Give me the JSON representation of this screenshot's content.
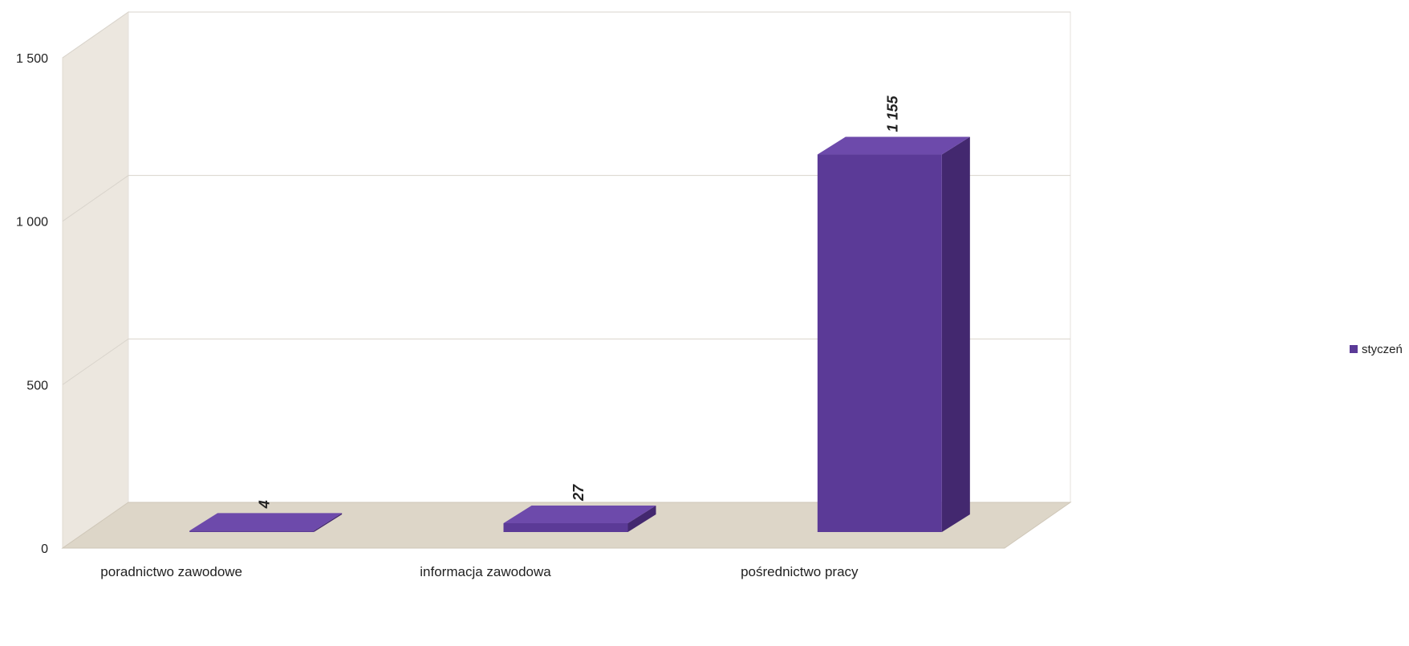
{
  "chart_data": {
    "type": "bar",
    "title": "",
    "xlabel": "",
    "ylabel": "",
    "categories": [
      "poradnictwo zawodowe",
      "informacja zawodowa",
      "pośrednictwo  pracy"
    ],
    "series": [
      {
        "name": "styczeń",
        "values": [
          4,
          27,
          1155
        ],
        "color": "#5b3a97"
      }
    ],
    "ylim": [
      0,
      1500
    ],
    "yticks": [
      0,
      500,
      1000,
      1500
    ],
    "ytick_labels": [
      "0",
      "500",
      "1 000",
      "1 500"
    ],
    "data_labels": [
      "4",
      "27",
      "1 155"
    ],
    "grid": true,
    "legend": "right",
    "three_d": true
  }
}
